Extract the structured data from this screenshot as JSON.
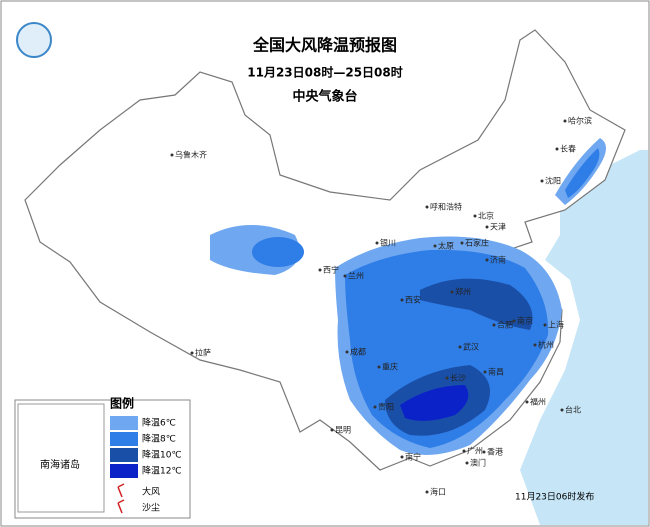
{
  "header": {
    "title": "全国大风降温预报图",
    "subtitle": "11月23日08时—25日08时",
    "issuer": "中央气象台"
  },
  "cities": [
    "乌鲁木齐",
    "哈尔滨",
    "长春",
    "沈阳",
    "呼和浩特",
    "北京",
    "天津",
    "银川",
    "太原",
    "石家庄",
    "济南",
    "西宁",
    "兰州",
    "西安",
    "郑州",
    "合肥",
    "南京",
    "上海",
    "杭州",
    "武汉",
    "成都",
    "重庆",
    "长沙",
    "南昌",
    "福州",
    "台北",
    "贵阳",
    "昆明",
    "南宁",
    "广州",
    "香港",
    "澳门",
    "海口",
    "拉萨"
  ],
  "legend": {
    "title": "图例",
    "items": [
      {
        "label": "降温6℃",
        "color": "#6fa8f0"
      },
      {
        "label": "降温8℃",
        "color": "#2f7de6"
      },
      {
        "label": "降温10℃",
        "color": "#1a4fa8"
      },
      {
        "label": "降温12℃",
        "color": "#0b22c8"
      }
    ],
    "symbols": [
      "大风",
      "沙尘"
    ]
  },
  "inset": "南海诸岛",
  "release": "11月23日06时发布"
}
